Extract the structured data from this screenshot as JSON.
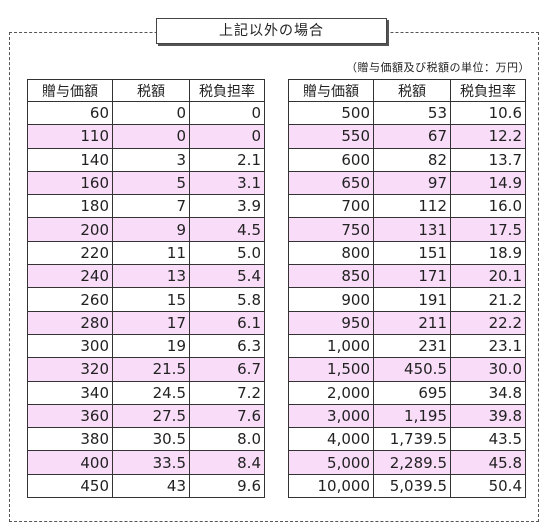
{
  "title": "上記以外の場合",
  "unit_note": "（贈与価額及び税額の単位：万円）",
  "headers": [
    "贈与価額",
    "税額",
    "税負担率"
  ],
  "colors": {
    "stripe": "#f8dcf8",
    "border": "#333333"
  },
  "left_rows": [
    [
      "60",
      "0",
      "0"
    ],
    [
      "110",
      "0",
      "0"
    ],
    [
      "140",
      "3",
      "2.1"
    ],
    [
      "160",
      "5",
      "3.1"
    ],
    [
      "180",
      "7",
      "3.9"
    ],
    [
      "200",
      "9",
      "4.5"
    ],
    [
      "220",
      "11",
      "5.0"
    ],
    [
      "240",
      "13",
      "5.4"
    ],
    [
      "260",
      "15",
      "5.8"
    ],
    [
      "280",
      "17",
      "6.1"
    ],
    [
      "300",
      "19",
      "6.3"
    ],
    [
      "320",
      "21.5",
      "6.7"
    ],
    [
      "340",
      "24.5",
      "7.2"
    ],
    [
      "360",
      "27.5",
      "7.6"
    ],
    [
      "380",
      "30.5",
      "8.0"
    ],
    [
      "400",
      "33.5",
      "8.4"
    ],
    [
      "450",
      "43",
      "9.6"
    ]
  ],
  "right_rows": [
    [
      "500",
      "53",
      "10.6"
    ],
    [
      "550",
      "67",
      "12.2"
    ],
    [
      "600",
      "82",
      "13.7"
    ],
    [
      "650",
      "97",
      "14.9"
    ],
    [
      "700",
      "112",
      "16.0"
    ],
    [
      "750",
      "131",
      "17.5"
    ],
    [
      "800",
      "151",
      "18.9"
    ],
    [
      "850",
      "171",
      "20.1"
    ],
    [
      "900",
      "191",
      "21.2"
    ],
    [
      "950",
      "211",
      "22.2"
    ],
    [
      "1,000",
      "231",
      "23.1"
    ],
    [
      "1,500",
      "450.5",
      "30.0"
    ],
    [
      "2,000",
      "695",
      "34.8"
    ],
    [
      "3,000",
      "1,195",
      "39.8"
    ],
    [
      "4,000",
      "1,739.5",
      "43.5"
    ],
    [
      "5,000",
      "2,289.5",
      "45.8"
    ],
    [
      "10,000",
      "5,039.5",
      "50.4"
    ]
  ]
}
